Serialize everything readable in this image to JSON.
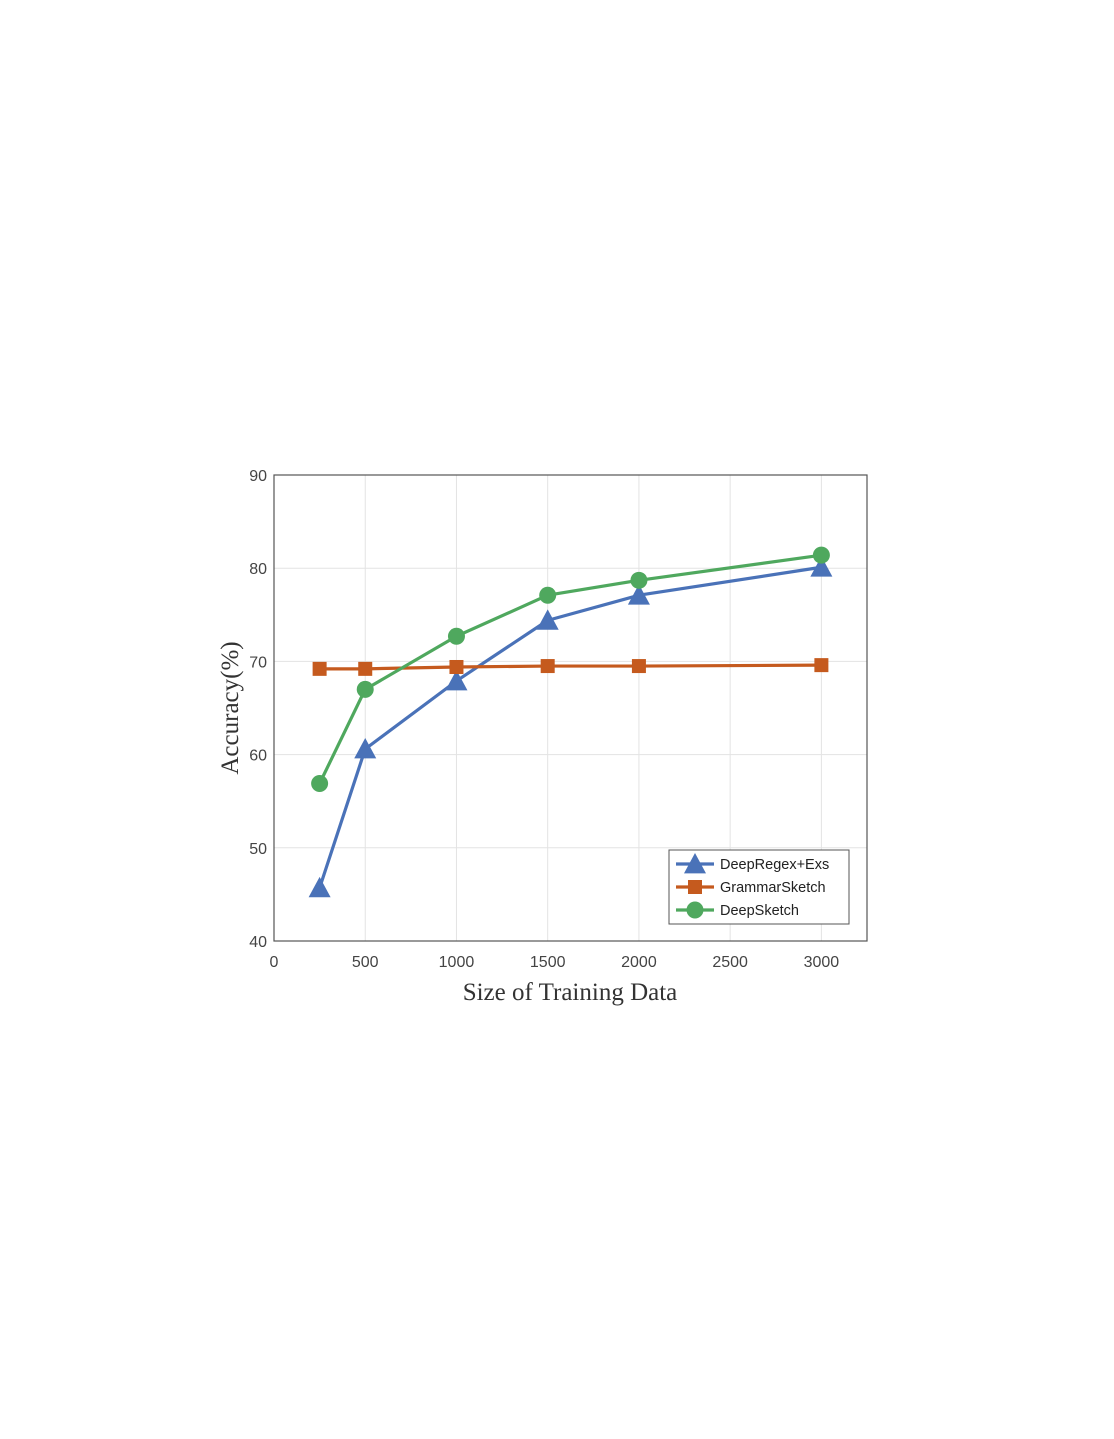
{
  "chart_data": {
    "type": "line",
    "xlabel": "Size of Training Data",
    "ylabel": "Accuracy(%)",
    "xlim": [
      0,
      3250
    ],
    "ylim": [
      40,
      90
    ],
    "xticks": [
      0,
      500,
      1000,
      1500,
      2000,
      2500,
      3000
    ],
    "yticks": [
      40,
      50,
      60,
      70,
      80,
      90
    ],
    "grid": true,
    "legend_position": "bottom-right",
    "series": [
      {
        "name": "DeepRegex+Exs",
        "color": "#4a72b8",
        "marker": "triangle",
        "x": [
          250,
          500,
          1000,
          1500,
          2000,
          3000
        ],
        "y": [
          45.7,
          60.6,
          67.9,
          74.4,
          77.1,
          80.1
        ]
      },
      {
        "name": "GrammarSketch",
        "color": "#c55a1e",
        "marker": "square",
        "x": [
          250,
          500,
          1000,
          1500,
          2000,
          3000
        ],
        "y": [
          69.2,
          69.2,
          69.4,
          69.5,
          69.5,
          69.6
        ]
      },
      {
        "name": "DeepSketch",
        "color": "#4fa85e",
        "marker": "circle",
        "x": [
          250,
          500,
          1000,
          1500,
          2000,
          3000
        ],
        "y": [
          56.9,
          67.0,
          72.7,
          77.1,
          78.7,
          81.4
        ]
      }
    ]
  }
}
